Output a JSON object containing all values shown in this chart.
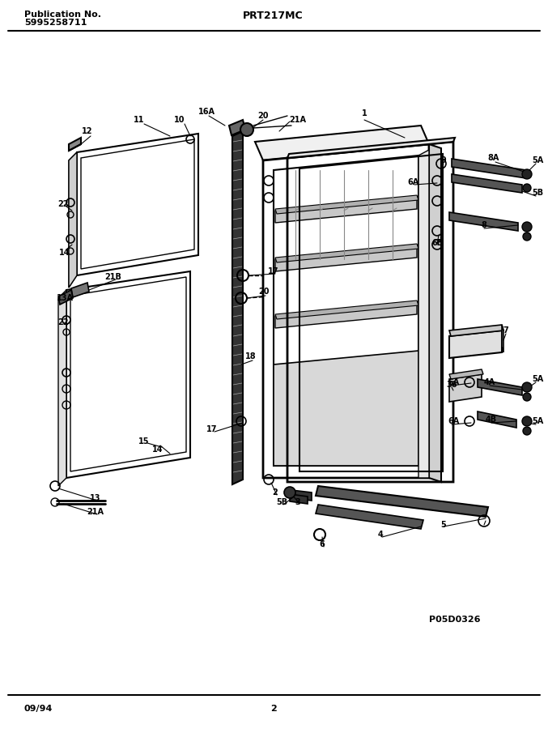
{
  "title_left_line1": "Publication No.",
  "title_left_line2": "5995258711",
  "title_center": "PRT217MC",
  "footer_left": "09/94",
  "footer_center": "2",
  "watermark": "P05D0326",
  "bg_color": "#ffffff",
  "line_color": "#000000",
  "header_font": 8,
  "footer_font": 8,
  "label_font": 7
}
